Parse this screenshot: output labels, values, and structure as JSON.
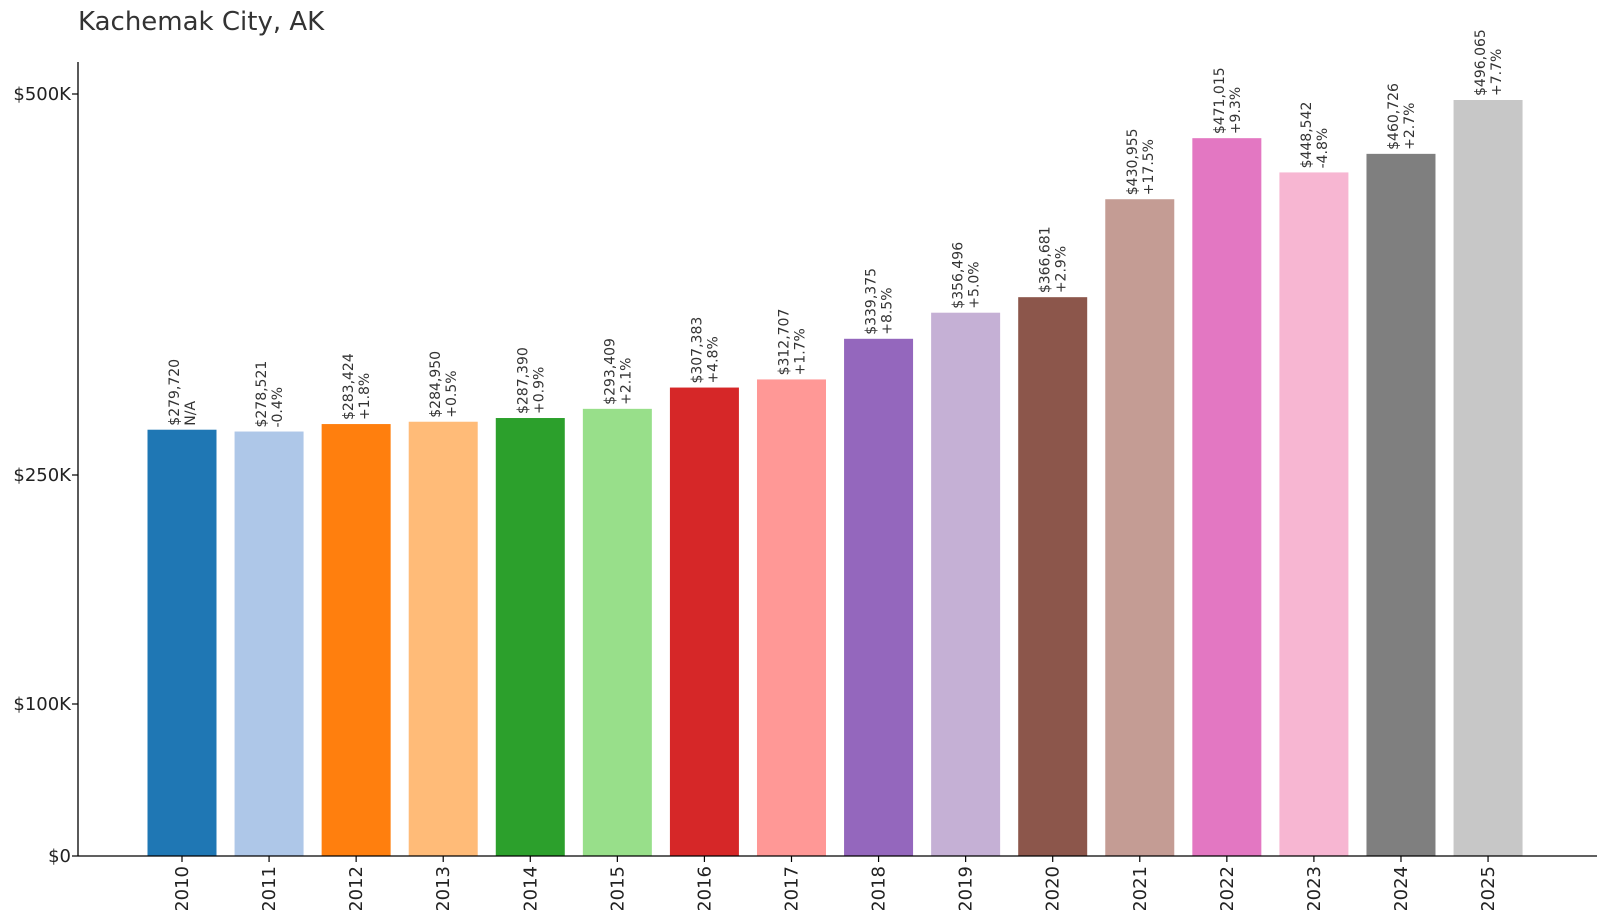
{
  "chart_data": {
    "type": "bar",
    "title": "Kachemak City, AK",
    "xlabel": "",
    "ylabel": "",
    "ylim": [
      0,
      520000
    ],
    "grid": false,
    "yticks": [
      {
        "value": 0,
        "label": "$0"
      },
      {
        "value": 100000,
        "label": "$100K"
      },
      {
        "value": 250000,
        "label": "$250K"
      },
      {
        "value": 500000,
        "label": "$500K"
      }
    ],
    "categories": [
      "2010",
      "2011",
      "2012",
      "2013",
      "2014",
      "2015",
      "2016",
      "2017",
      "2018",
      "2019",
      "2020",
      "2021",
      "2022",
      "2023",
      "2024",
      "2025"
    ],
    "values": [
      279720,
      278521,
      283424,
      284950,
      287390,
      293409,
      307383,
      312707,
      339375,
      356496,
      366681,
      430955,
      471015,
      448542,
      460726,
      496065
    ],
    "value_labels": [
      "$279,720",
      "$278,521",
      "$283,424",
      "$284,950",
      "$287,390",
      "$293,409",
      "$307,383",
      "$312,707",
      "$339,375",
      "$356,496",
      "$366,681",
      "$430,955",
      "$471,015",
      "$448,542",
      "$460,726",
      "$496,065"
    ],
    "change_labels": [
      "N/A",
      "-0.4%",
      "+1.8%",
      "+0.5%",
      "+0.9%",
      "+2.1%",
      "+4.8%",
      "+1.7%",
      "+8.5%",
      "+5.0%",
      "+2.9%",
      "+17.5%",
      "+9.3%",
      "-4.8%",
      "+2.7%",
      "+7.7%"
    ],
    "colors": [
      "#1f77b4",
      "#aec7e8",
      "#ff7f0e",
      "#ffbb78",
      "#2ca02c",
      "#98df8a",
      "#d62728",
      "#ff9896",
      "#9467bd",
      "#c5b0d5",
      "#8c564b",
      "#c49c94",
      "#e377c2",
      "#f7b6d2",
      "#7f7f7f",
      "#c7c7c7"
    ]
  }
}
